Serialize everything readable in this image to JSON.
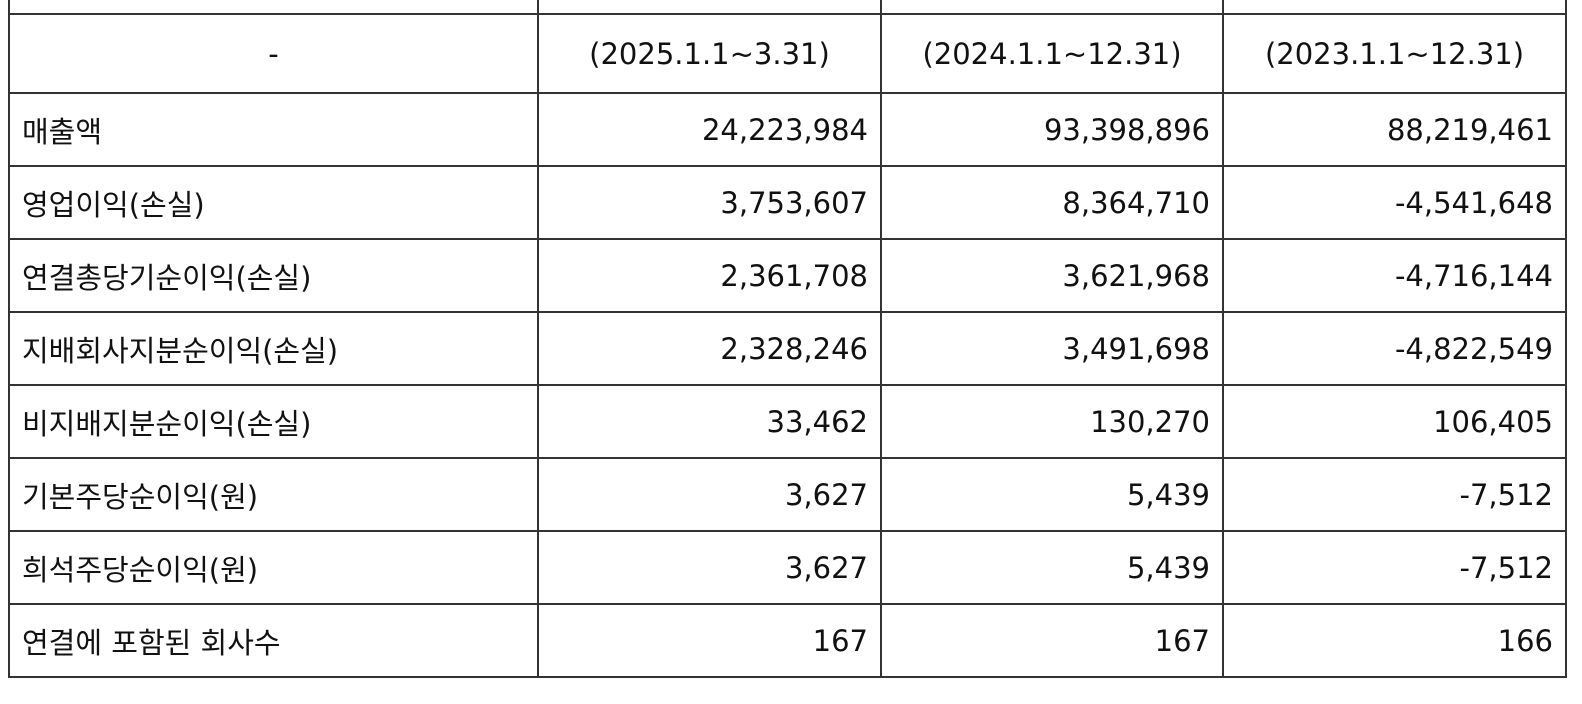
{
  "table": {
    "header": [
      "-",
      "(2025.1.1~3.31)",
      "(2024.1.1~12.31)",
      "(2023.1.1~12.31)"
    ],
    "rows": [
      [
        "매출액",
        "24,223,984",
        "93,398,896",
        "88,219,461"
      ],
      [
        "영업이익(손실)",
        "3,753,607",
        "8,364,710",
        "-4,541,648"
      ],
      [
        "연결총당기순이익(손실)",
        "2,361,708",
        "3,621,968",
        "-4,716,144"
      ],
      [
        "지배회사지분순이익(손실)",
        "2,328,246",
        "3,491,698",
        "-4,822,549"
      ],
      [
        "비지배지분순이익(손실)",
        "33,462",
        "130,270",
        "106,405"
      ],
      [
        "기본주당순이익(원)",
        "3,627",
        "5,439",
        "-7,512"
      ],
      [
        "희석주당순이익(원)",
        "3,627",
        "5,439",
        "-7,512"
      ],
      [
        "연결에 포함된 회사수",
        "167",
        "167",
        "166"
      ]
    ]
  }
}
